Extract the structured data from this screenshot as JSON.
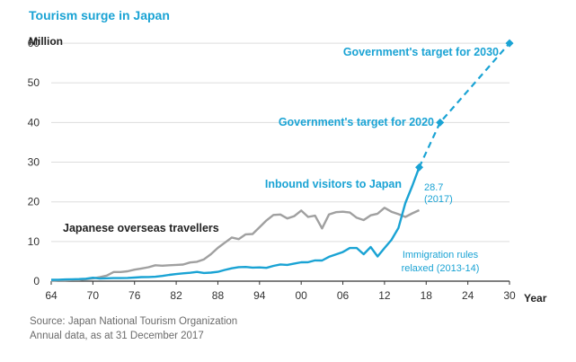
{
  "title": "Tourism surge in Japan",
  "source_lines": [
    "Source: Japan National Tourism Organization",
    "Annual data, as at 31 December 2017"
  ],
  "colors": {
    "accent": "#1aa3d4",
    "overseas": "#a0a0a0",
    "text": "#222222",
    "grid": "#dddddd"
  },
  "chart_data": {
    "type": "line",
    "title": "Tourism surge in Japan",
    "ylabel": "Million",
    "xlabel": "Year",
    "ylim": [
      0,
      65
    ],
    "xlim": [
      1964,
      2030
    ],
    "yticks": [
      0,
      10,
      20,
      30,
      40,
      50,
      60
    ],
    "xticks": [
      1964,
      1970,
      1976,
      1982,
      1988,
      1994,
      2000,
      2006,
      2012,
      2018,
      2024,
      2030
    ],
    "xtick_labels": [
      "64",
      "70",
      "76",
      "82",
      "88",
      "94",
      "00",
      "06",
      "12",
      "18",
      "24",
      "30"
    ],
    "series": [
      {
        "name": "Japanese overseas travellers",
        "color": "#a0a0a0",
        "x": [
          1964,
          1965,
          1966,
          1967,
          1968,
          1969,
          1970,
          1971,
          1972,
          1973,
          1974,
          1975,
          1976,
          1977,
          1978,
          1979,
          1980,
          1981,
          1982,
          1983,
          1984,
          1985,
          1986,
          1987,
          1988,
          1989,
          1990,
          1991,
          1992,
          1993,
          1994,
          1995,
          1996,
          1997,
          1998,
          1999,
          2000,
          2001,
          2002,
          2003,
          2004,
          2005,
          2006,
          2007,
          2008,
          2009,
          2010,
          2011,
          2012,
          2013,
          2014,
          2015,
          2016,
          2017
        ],
        "values": [
          0.1,
          0.2,
          0.2,
          0.3,
          0.3,
          0.5,
          0.7,
          1.0,
          1.4,
          2.3,
          2.3,
          2.5,
          2.9,
          3.2,
          3.5,
          4.0,
          3.9,
          4.0,
          4.1,
          4.2,
          4.7,
          4.9,
          5.5,
          6.8,
          8.4,
          9.7,
          11.0,
          10.6,
          11.8,
          11.9,
          13.6,
          15.3,
          16.7,
          16.8,
          15.8,
          16.4,
          17.8,
          16.2,
          16.5,
          13.3,
          16.8,
          17.4,
          17.5,
          17.3,
          16.0,
          15.4,
          16.6,
          17.0,
          18.5,
          17.5,
          16.9,
          16.2,
          17.1,
          17.9
        ]
      },
      {
        "name": "Inbound visitors to Japan",
        "color": "#1aa3d4",
        "x": [
          1964,
          1965,
          1966,
          1967,
          1968,
          1969,
          1970,
          1971,
          1972,
          1973,
          1974,
          1975,
          1976,
          1977,
          1978,
          1979,
          1980,
          1981,
          1982,
          1983,
          1984,
          1985,
          1986,
          1987,
          1988,
          1989,
          1990,
          1991,
          1992,
          1993,
          1994,
          1995,
          1996,
          1997,
          1998,
          1999,
          2000,
          2001,
          2002,
          2003,
          2004,
          2005,
          2006,
          2007,
          2008,
          2009,
          2010,
          2011,
          2012,
          2013,
          2014,
          2015,
          2016,
          2017
        ],
        "values": [
          0.35,
          0.37,
          0.43,
          0.48,
          0.52,
          0.61,
          0.85,
          0.66,
          0.72,
          0.78,
          0.76,
          0.81,
          0.91,
          1.03,
          1.04,
          1.11,
          1.32,
          1.58,
          1.79,
          1.97,
          2.11,
          2.33,
          2.06,
          2.16,
          2.36,
          2.84,
          3.24,
          3.53,
          3.58,
          3.41,
          3.47,
          3.35,
          3.84,
          4.22,
          4.11,
          4.44,
          4.76,
          4.77,
          5.24,
          5.21,
          6.14,
          6.73,
          7.33,
          8.35,
          8.35,
          6.79,
          8.61,
          6.22,
          8.36,
          10.4,
          13.4,
          19.7,
          24.0,
          28.7
        ]
      },
      {
        "name": "Government targets",
        "color": "#1aa3d4",
        "style": "dashed",
        "x": [
          2017,
          2020,
          2030
        ],
        "values": [
          28.7,
          40,
          60
        ]
      }
    ],
    "annotations": [
      {
        "text": "Government's target for 2030",
        "x": 2030,
        "y": 60
      },
      {
        "text": "Government's target for 2020",
        "x": 2020,
        "y": 40
      },
      {
        "text": "Inbound visitors to Japan",
        "x": 2017,
        "y": 28.7
      },
      {
        "text_lines": [
          "28.7",
          "(2017)"
        ],
        "x": 2017,
        "y": 28.7
      },
      {
        "text": "Japanese overseas travellers",
        "x": 1990,
        "y": 14
      },
      {
        "text_lines": [
          "Immigration rules",
          "relaxed (2013-14)"
        ],
        "x": 2013,
        "y": 12
      }
    ]
  }
}
